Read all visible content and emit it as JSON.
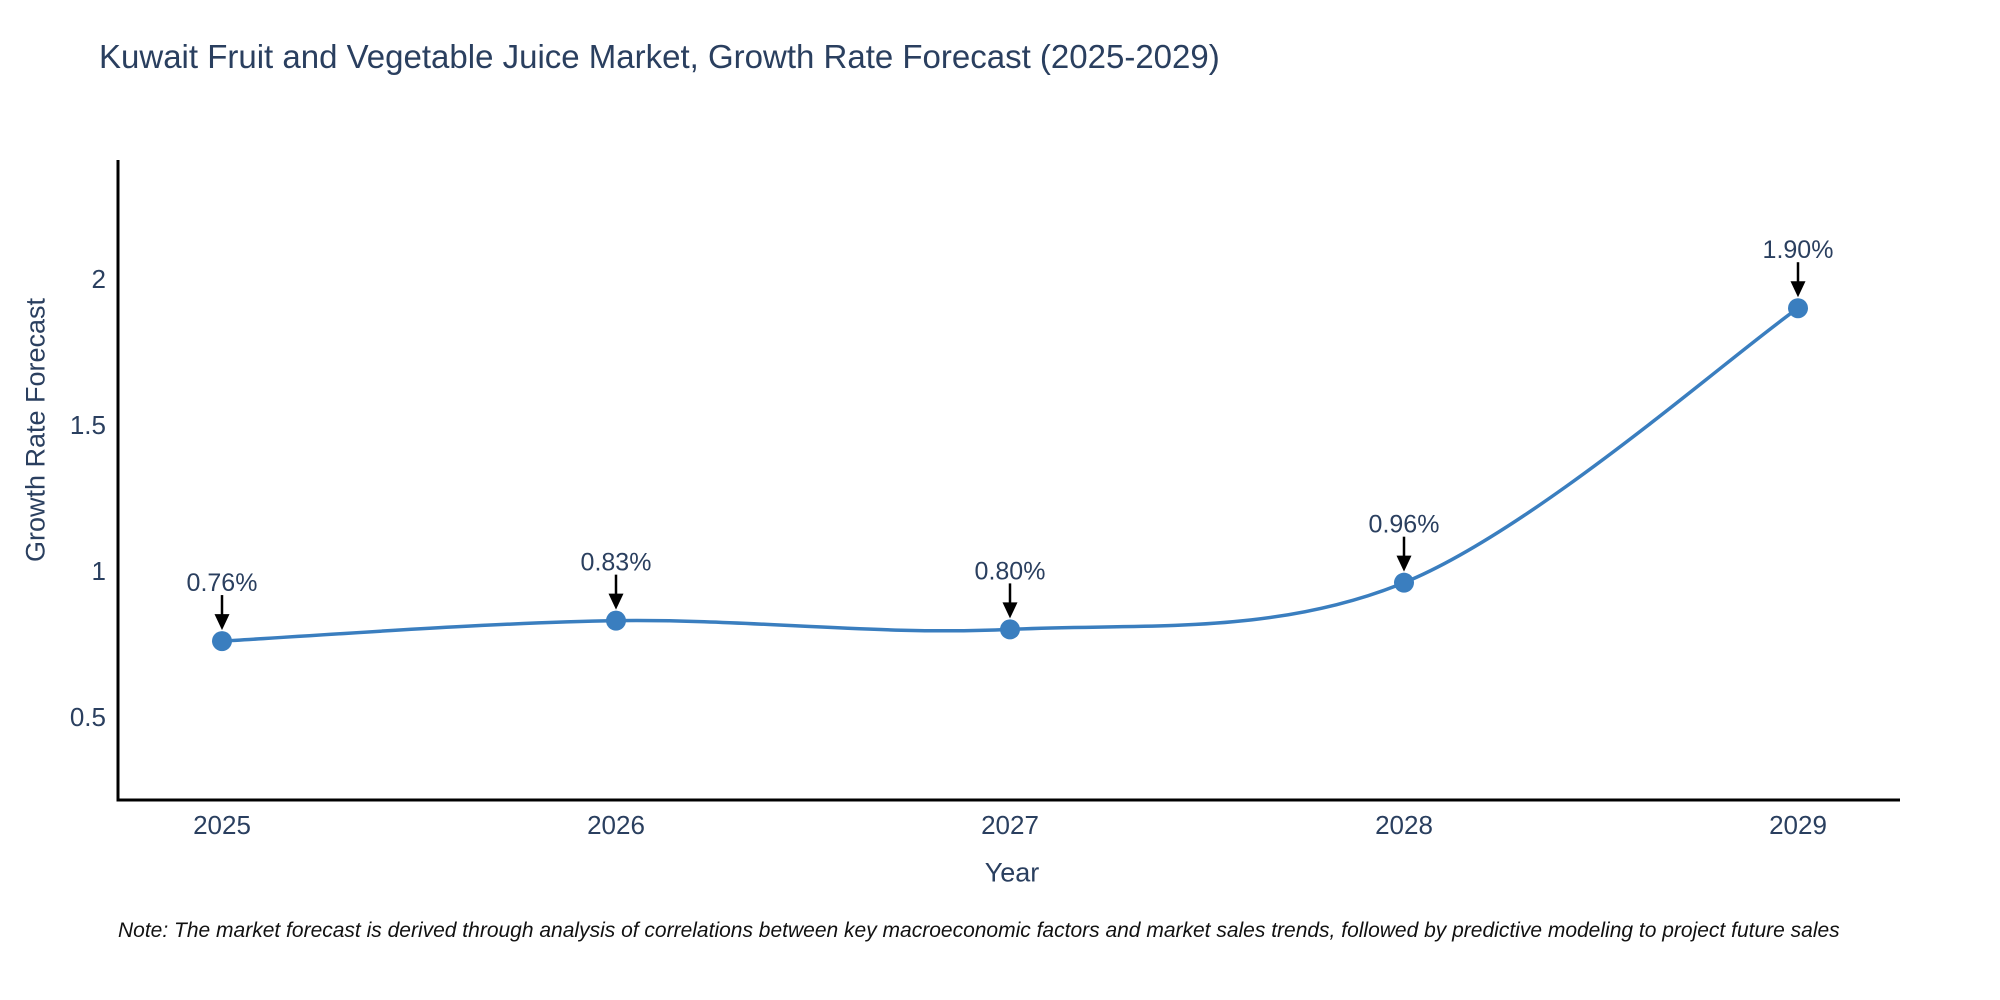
{
  "header": {
    "title": "Kuwait Fruit and Vegetable Juice Market, Growth Rate Forecast (2025-2029)"
  },
  "footnote": {
    "text": "Note: The market forecast is derived through analysis of correlations between key macroeconomic factors and market sales trends, followed by predictive modeling to project future sales"
  },
  "chart_data": {
    "type": "line",
    "title": "Kuwait Fruit and Vegetable Juice Market, Growth Rate Forecast (2025-2029)",
    "xlabel": "Year",
    "ylabel": "Growth Rate Forecast",
    "categories": [
      "2025",
      "2026",
      "2027",
      "2028",
      "2029"
    ],
    "series": [
      {
        "name": "Growth Rate Forecast",
        "values": [
          0.76,
          0.83,
          0.8,
          0.96,
          1.9
        ]
      }
    ],
    "point_labels": [
      "0.76%",
      "0.83%",
      "0.80%",
      "0.96%",
      "1.90%"
    ],
    "ytick_values": [
      0.5,
      1,
      1.5,
      2
    ],
    "ytick_labels": [
      "0.5",
      "1",
      "1.5",
      "2"
    ],
    "ylim": [
      0.215,
      2.41
    ],
    "grid": false,
    "legend_position": "none",
    "line_shape": "spline",
    "annotation_style": "label-with-down-arrow",
    "colors": {
      "line": "#3a7ebf",
      "marker": "#3a7ebf",
      "axis_line": "#000000",
      "arrow": "#000000",
      "text": "#2a3f5f",
      "note_text": "#111111",
      "background": "#ffffff"
    }
  }
}
